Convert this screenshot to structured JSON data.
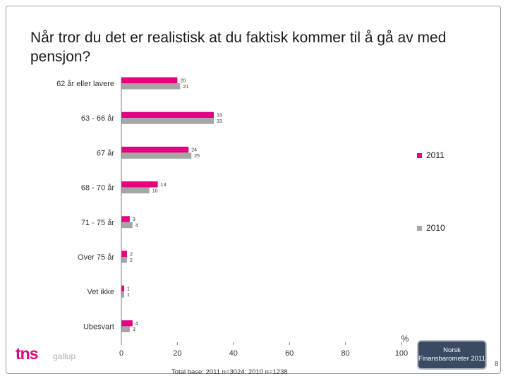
{
  "title": "Når tror du det er realistisk at du faktisk kommer til å gå av med pensjon?",
  "footer": {
    "base_note": "Total base: 2011 n=3024; 2010 n=1238",
    "logo_text": "tns",
    "logo_sub": "gallup",
    "badge_line1": "Norsk",
    "badge_line2": "Finansbarometer 2011",
    "page_number": "8"
  },
  "colors": {
    "series_2011": "#e4007f",
    "series_2010": "#a6a6a6"
  },
  "chart_data": {
    "type": "bar",
    "orientation": "horizontal",
    "categories": [
      "62 år eller lavere",
      "63 - 66 år",
      "67 år",
      "68 - 70 år",
      "71 - 75 år",
      "Over 75 år",
      "Vet ikke",
      "Ubesvart"
    ],
    "series": [
      {
        "name": "2011",
        "color": "#e4007f",
        "values": [
          20,
          33,
          24,
          13,
          3,
          2,
          1,
          4
        ]
      },
      {
        "name": "2010",
        "color": "#a6a6a6",
        "values": [
          21,
          33,
          25,
          10,
          4,
          2,
          1,
          3
        ]
      }
    ],
    "data_labels": {
      "2011": [
        "20",
        "33",
        "24",
        "13",
        "3",
        "2",
        "1",
        "4"
      ],
      "2010": [
        "21",
        "33",
        "25",
        "10",
        "4",
        "2",
        "1",
        "3"
      ]
    },
    "xlim": [
      0,
      100
    ],
    "xticks": [
      "0",
      "20",
      "40",
      "60",
      "80",
      "100"
    ],
    "xunit": "%",
    "legend_position": "right",
    "grid": false
  }
}
